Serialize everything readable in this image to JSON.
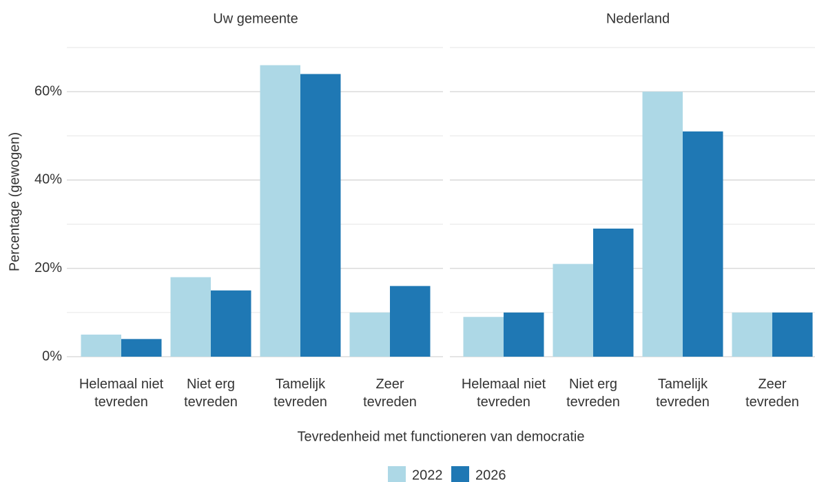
{
  "chart_data": {
    "type": "bar",
    "xlabel": "Tevredenheid met functioneren van democratie",
    "ylabel": "Percentage (gewogen)",
    "categories": [
      "Helemaal niet\ntevreden",
      "Niet erg\ntevreden",
      "Tamelijk\ntevreden",
      "Zeer\ntevreden"
    ],
    "series": [
      {
        "name": "2022",
        "color": "#add8e6"
      },
      {
        "name": "2026",
        "color": "#1f78b4"
      }
    ],
    "panels": [
      {
        "title": "Uw gemeente",
        "values": [
          [
            5,
            18,
            66,
            10
          ],
          [
            4,
            15,
            64,
            16
          ]
        ]
      },
      {
        "title": "Nederland",
        "values": [
          [
            9,
            21,
            60,
            10
          ],
          [
            10,
            29,
            51,
            10
          ]
        ]
      }
    ],
    "ylim": [
      0,
      70
    ],
    "yticks": [
      {
        "value": 0,
        "label": "0%"
      },
      {
        "value": 20,
        "label": "20%"
      },
      {
        "value": 40,
        "label": "40%"
      },
      {
        "value": 60,
        "label": "60%"
      }
    ],
    "minor_yticks": [
      10,
      30,
      50,
      70
    ],
    "grid": true,
    "legend": "bottom"
  }
}
